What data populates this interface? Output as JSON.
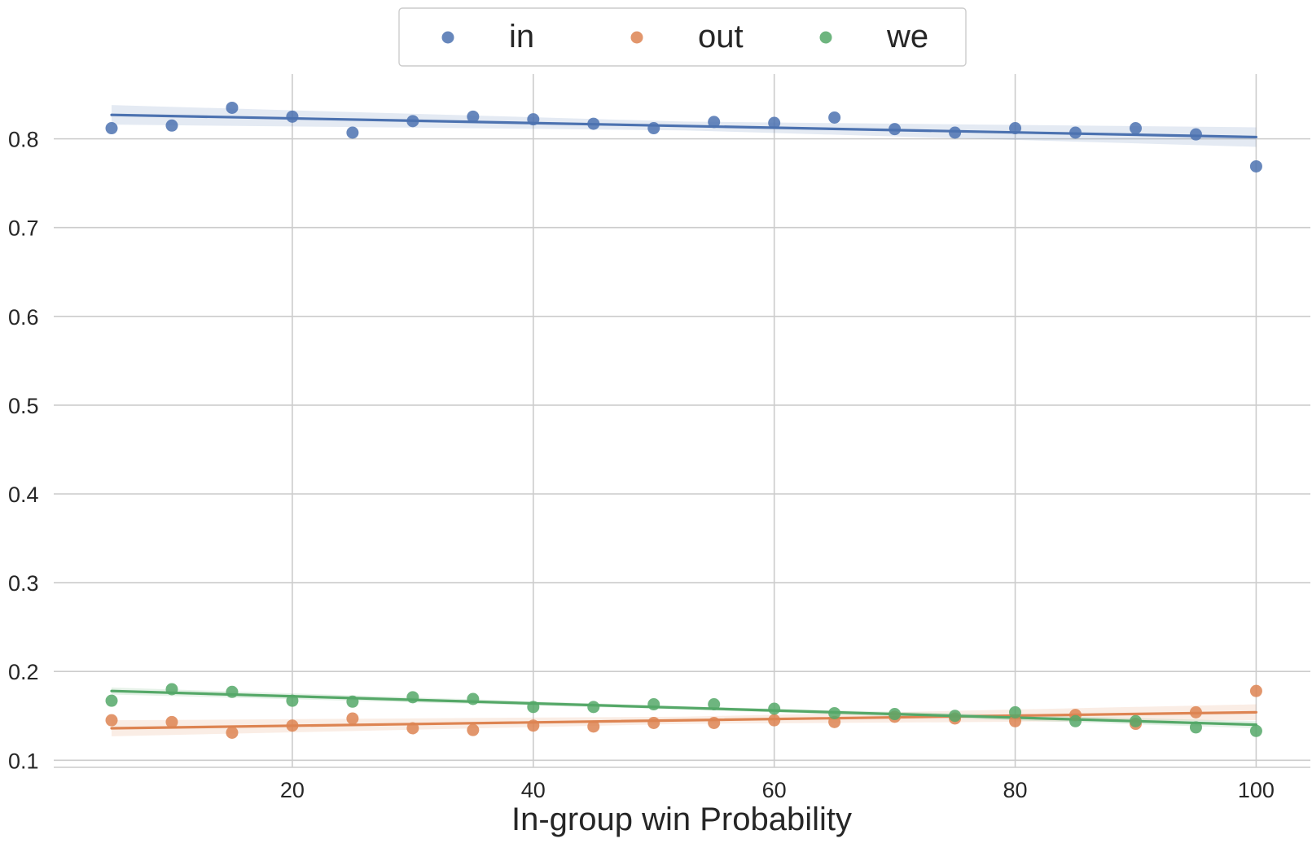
{
  "chart_data": {
    "type": "scatter",
    "title": "",
    "xlabel": "In-group win Probability",
    "ylabel": "",
    "xlim": [
      0.2,
      104.5
    ],
    "ylim": [
      0.092,
      0.873
    ],
    "xticks": [
      20,
      40,
      60,
      80,
      100
    ],
    "yticks": [
      0.1,
      0.2,
      0.3,
      0.4,
      0.5,
      0.6,
      0.7,
      0.8
    ],
    "grid": true,
    "legend": {
      "position": "top-center",
      "columns": 3
    },
    "x": [
      5,
      10,
      15,
      20,
      25,
      30,
      35,
      40,
      45,
      50,
      55,
      60,
      65,
      70,
      75,
      80,
      85,
      90,
      95,
      100
    ],
    "series": [
      {
        "name": "in",
        "color": "#4c72b0",
        "values": [
          0.812,
          0.815,
          0.835,
          0.825,
          0.807,
          0.82,
          0.825,
          0.822,
          0.817,
          0.812,
          0.819,
          0.818,
          0.824,
          0.811,
          0.807,
          0.812,
          0.807,
          0.812,
          0.805,
          0.769
        ],
        "fit": {
          "x": [
            5,
            100
          ],
          "y": [
            0.827,
            0.802
          ],
          "ci_halfwidth": [
            0.011,
            0.011
          ]
        }
      },
      {
        "name": "out",
        "color": "#dd8452",
        "values": [
          0.145,
          0.143,
          0.131,
          0.139,
          0.147,
          0.136,
          0.134,
          0.139,
          0.138,
          0.142,
          0.142,
          0.145,
          0.143,
          0.149,
          0.147,
          0.144,
          0.151,
          0.141,
          0.154,
          0.178
        ],
        "fit": {
          "x": [
            5,
            100
          ],
          "y": [
            0.136,
            0.154
          ],
          "ci_halfwidth": [
            0.009,
            0.009
          ]
        }
      },
      {
        "name": "we",
        "color": "#55a868",
        "values": [
          0.167,
          0.18,
          0.177,
          0.167,
          0.166,
          0.171,
          0.169,
          0.16,
          0.16,
          0.163,
          0.163,
          0.158,
          0.153,
          0.152,
          0.15,
          0.154,
          0.144,
          0.144,
          0.137,
          0.133
        ],
        "fit": {
          "x": [
            5,
            100
          ],
          "y": [
            0.178,
            0.14
          ],
          "ci_halfwidth": [
            0.004,
            0.004
          ]
        }
      }
    ]
  }
}
